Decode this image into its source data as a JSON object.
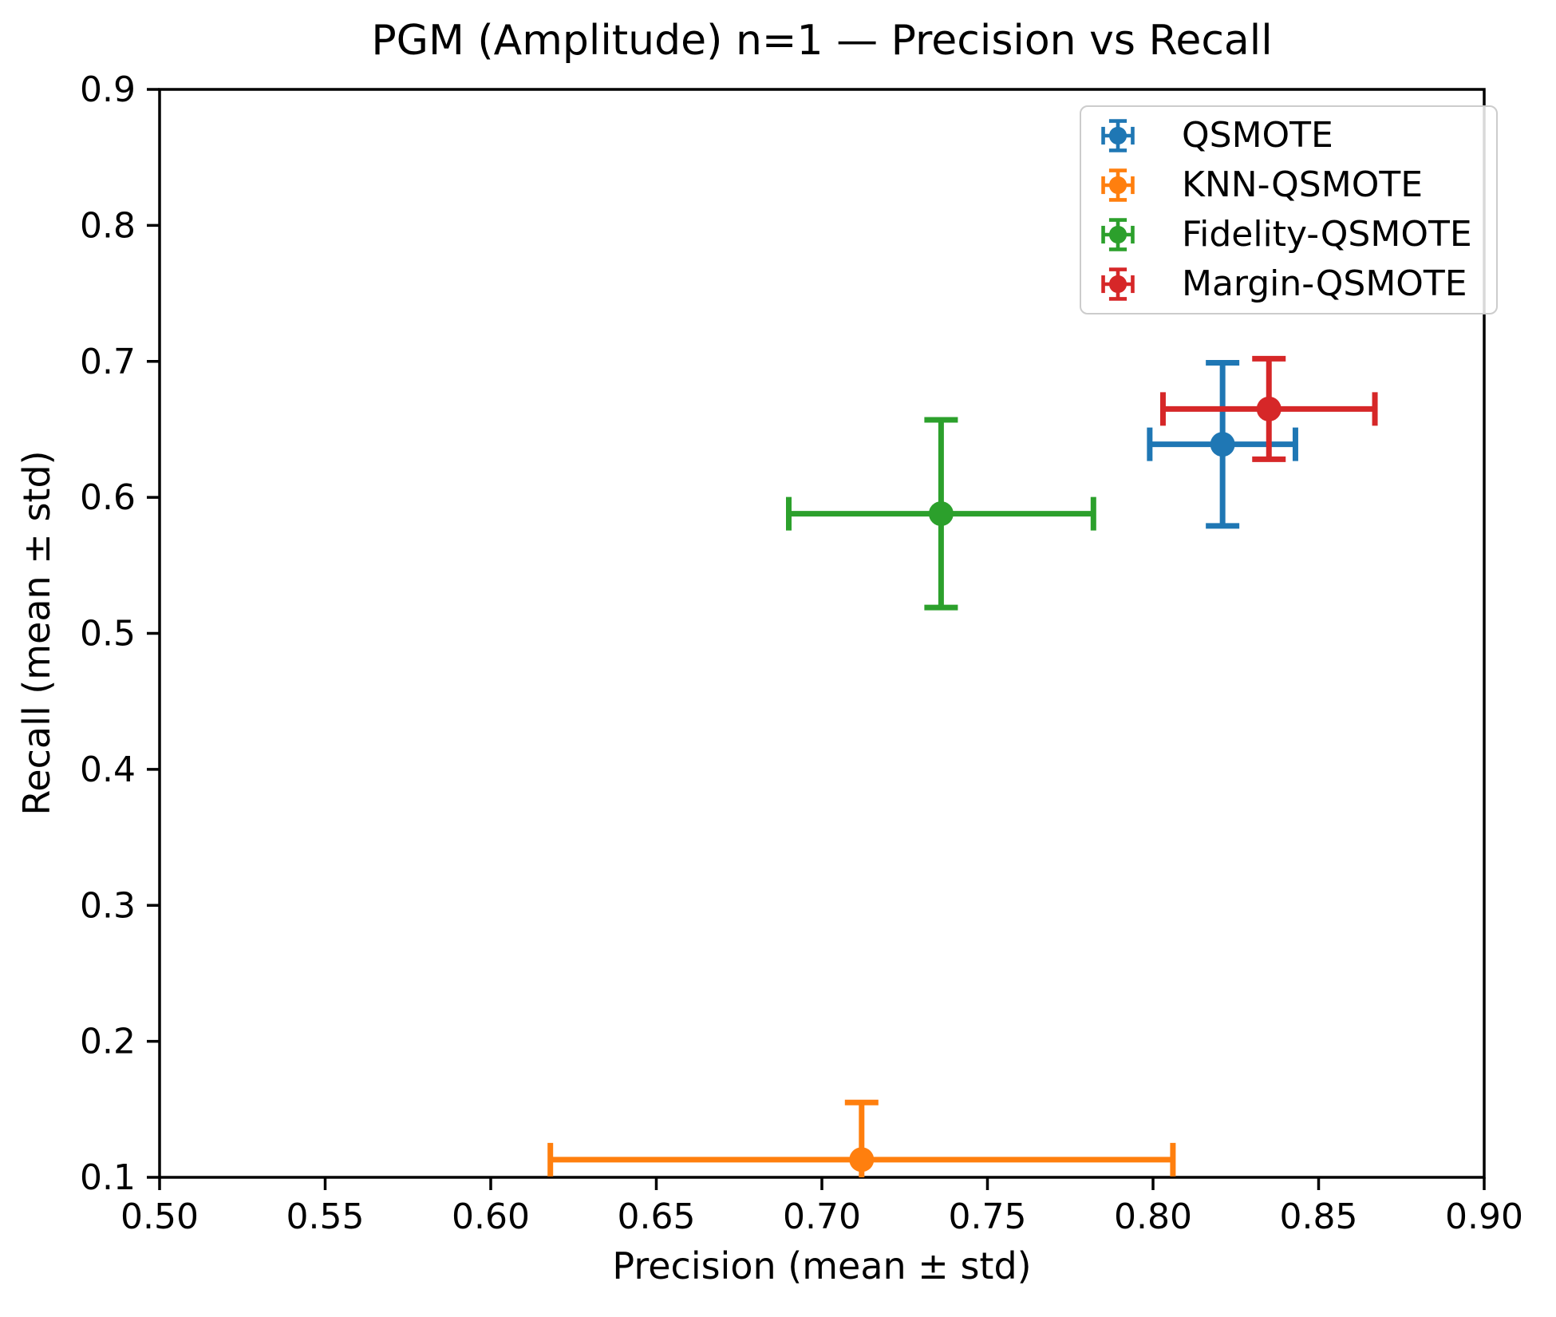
{
  "chart_data": {
    "type": "scatter",
    "title": "PGM (Amplitude) n=1 — Precision vs Recall",
    "xlabel": "Precision (mean ± std)",
    "ylabel": "Recall (mean ± std)",
    "xlim": [
      0.5,
      0.9
    ],
    "ylim": [
      0.1,
      0.9
    ],
    "grid": false,
    "legend_position": "upper right",
    "xticks": {
      "values": [
        0.5,
        0.55,
        0.6,
        0.65,
        0.7,
        0.75,
        0.8,
        0.85,
        0.9
      ],
      "labels": [
        "0.50",
        "0.55",
        "0.60",
        "0.65",
        "0.70",
        "0.75",
        "0.80",
        "0.85",
        "0.90"
      ]
    },
    "yticks": {
      "values": [
        0.1,
        0.2,
        0.3,
        0.4,
        0.5,
        0.6,
        0.7,
        0.8,
        0.9
      ],
      "labels": [
        "0.1",
        "0.2",
        "0.3",
        "0.4",
        "0.5",
        "0.6",
        "0.7",
        "0.8",
        "0.9"
      ]
    },
    "series": [
      {
        "name": "QSMOTE",
        "color": "#1f77b4",
        "x": 0.821,
        "y": 0.639,
        "xerr": 0.022,
        "yerr": 0.06
      },
      {
        "name": "KNN-QSMOTE",
        "color": "#ff7f0e",
        "x": 0.712,
        "y": 0.113,
        "xerr": 0.094,
        "yerr": 0.042
      },
      {
        "name": "Fidelity-QSMOTE",
        "color": "#2ca02c",
        "x": 0.736,
        "y": 0.588,
        "xerr": 0.046,
        "yerr": 0.069
      },
      {
        "name": "Margin-QSMOTE",
        "color": "#d62728",
        "x": 0.835,
        "y": 0.665,
        "xerr": 0.032,
        "yerr": 0.037
      }
    ]
  }
}
